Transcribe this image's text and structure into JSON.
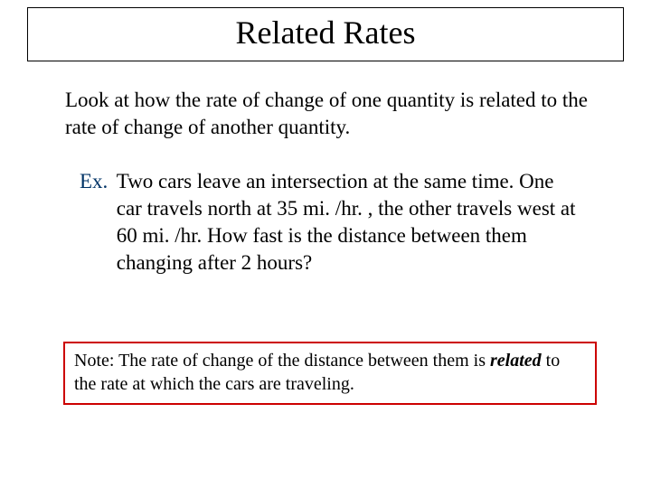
{
  "title": "Related Rates",
  "intro": "Look at how the rate of change of one quantity is related to the rate of change of another quantity.",
  "example": {
    "label": "Ex.",
    "body": "Two cars leave an intersection at the same time.  One car travels north at 35 mi. /hr. , the other travels west at 60 mi. /hr.  How fast is the distance between them changing after 2 hours?"
  },
  "note": {
    "prefix": "Note:   The rate of change of the distance between them is ",
    "italic": "related",
    "suffix": " to the rate at which the cars are traveling."
  },
  "colors": {
    "title_border": "#000000",
    "note_border": "#cc0000",
    "ex_label": "#003366",
    "text": "#000000",
    "background": "#ffffff"
  },
  "typography": {
    "title_fontsize": 36,
    "body_fontsize": 23,
    "note_fontsize": 20,
    "font_family": "Times New Roman"
  }
}
